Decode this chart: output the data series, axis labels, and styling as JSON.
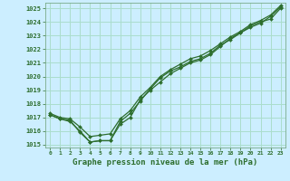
{
  "title": "Graphe pression niveau de la mer (hPa)",
  "background_color": "#cceeff",
  "plot_bg_color": "#cceeff",
  "grid_color": "#aaddcc",
  "line_color": "#2d6e2d",
  "ylim": [
    1014.8,
    1025.4
  ],
  "xlim": [
    -0.5,
    23.5
  ],
  "yticks": [
    1015,
    1016,
    1017,
    1018,
    1019,
    1020,
    1021,
    1022,
    1023,
    1024,
    1025
  ],
  "xticks": [
    0,
    1,
    2,
    3,
    4,
    5,
    6,
    7,
    8,
    9,
    10,
    11,
    12,
    13,
    14,
    15,
    16,
    17,
    18,
    19,
    20,
    21,
    22,
    23
  ],
  "series": [
    [
      1017.2,
      1016.9,
      1016.7,
      1016.0,
      1015.2,
      1015.3,
      1015.3,
      1016.5,
      1017.0,
      1018.3,
      1019.0,
      1019.6,
      1020.2,
      1020.6,
      1021.0,
      1021.2,
      1021.6,
      1022.2,
      1022.8,
      1023.2,
      1023.7,
      1024.0,
      1024.2,
      1025.0
    ],
    [
      1017.2,
      1016.9,
      1016.8,
      1015.9,
      1015.2,
      1015.3,
      1015.3,
      1016.7,
      1017.3,
      1018.2,
      1019.1,
      1019.9,
      1020.4,
      1020.7,
      1021.1,
      1021.3,
      1021.7,
      1022.3,
      1022.7,
      1023.2,
      1023.6,
      1023.9,
      1024.4,
      1025.1
    ],
    [
      1017.3,
      1017.0,
      1016.9,
      1016.3,
      1015.6,
      1015.7,
      1015.8,
      1016.9,
      1017.5,
      1018.5,
      1019.2,
      1020.0,
      1020.5,
      1020.9,
      1021.3,
      1021.5,
      1021.9,
      1022.4,
      1022.9,
      1023.3,
      1023.8,
      1024.1,
      1024.5,
      1025.2
    ]
  ],
  "ylabel_fontsize": 5.5,
  "xlabel_fontsize": 6.5,
  "title_fontsize": 6.5,
  "marker_size": 2.0,
  "line_width": 0.9
}
